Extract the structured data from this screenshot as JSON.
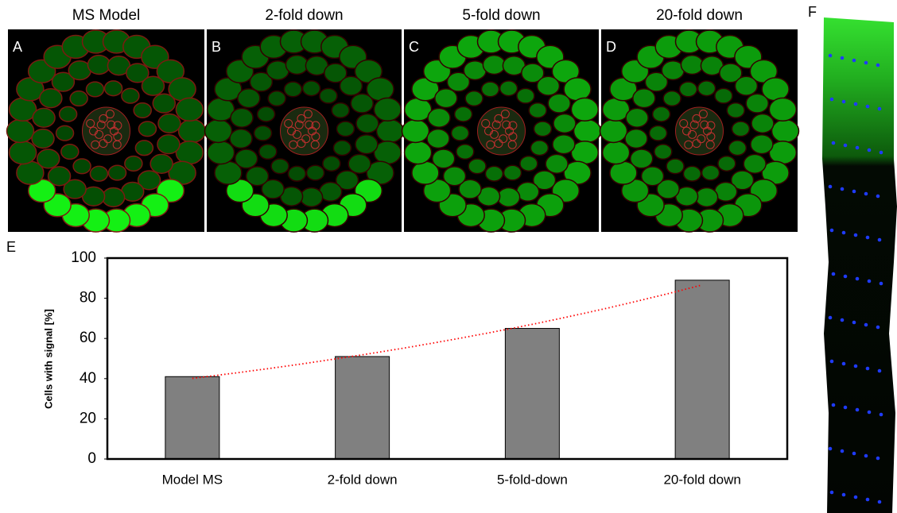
{
  "panels": [
    {
      "letter": "A",
      "title": "MS Model"
    },
    {
      "letter": "B",
      "title": "2-fold down"
    },
    {
      "letter": "C",
      "title": "5-fold down"
    },
    {
      "letter": "D",
      "title": "20-fold down"
    }
  ],
  "panel_f_label": "F",
  "chart_data": {
    "type": "bar",
    "panel_label": "E",
    "y_label": "Cells with signal [%]",
    "categories": [
      "Model MS",
      "2-fold down",
      "5-fold-down",
      "20-fold down"
    ],
    "values": [
      41,
      51,
      65,
      89
    ],
    "color": "#808080",
    "ylim": [
      0,
      100
    ],
    "yticks": [
      0,
      20,
      40,
      60,
      80,
      100
    ],
    "grid": false,
    "trendline": {
      "type": "exponential",
      "color": "#ff0000",
      "style": "dotted"
    }
  }
}
